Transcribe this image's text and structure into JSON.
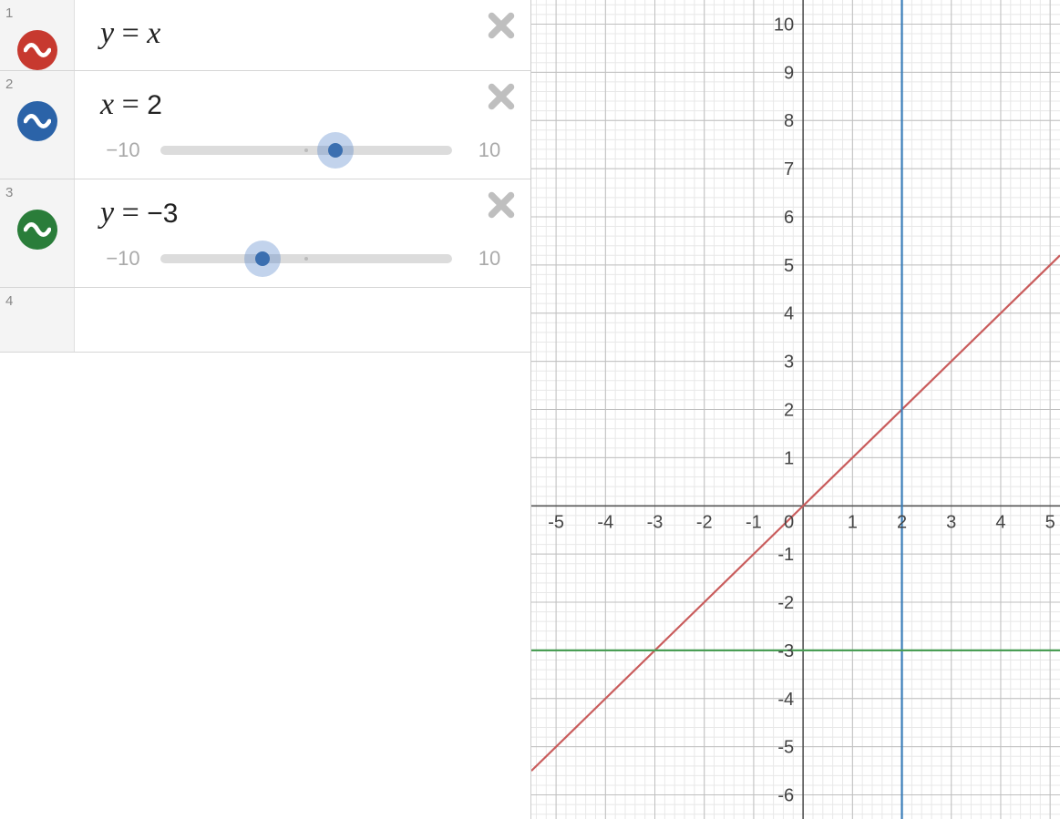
{
  "sidebar": {
    "rows": [
      {
        "index": "1",
        "badge_color": "#c7392f",
        "expr_lhs": "y",
        "expr_rhs": "x",
        "has_slider": false
      },
      {
        "index": "2",
        "badge_color": "#2b63a8",
        "expr_lhs": "x",
        "expr_rhs": "2",
        "has_slider": true,
        "slider": {
          "min": "−10",
          "max": "10",
          "min_val": -10,
          "max_val": 10,
          "value": 2,
          "tick_at": 0
        }
      },
      {
        "index": "3",
        "badge_color": "#2a7d3a",
        "expr_lhs": "y",
        "expr_rhs": "−3",
        "has_slider": true,
        "slider": {
          "min": "−10",
          "max": "10",
          "min_val": -10,
          "max_val": 10,
          "value": -3,
          "tick_at": 0
        }
      },
      {
        "index": "4",
        "empty": true
      }
    ],
    "close_icon_color": "#bfbfbf",
    "slider_thumb_color": "#3b6fb0",
    "slider_halo_color": "rgba(80,130,200,0.35)",
    "slider_track_color": "#dcdcdc"
  },
  "graph": {
    "x_min": -5.5,
    "x_max": 5.2,
    "y_min": -6.5,
    "y_max": 10.5,
    "minor_subdiv": 5,
    "grid_minor_color": "#e8e8e8",
    "grid_major_color": "#bfbfbf",
    "axis_color": "#555555",
    "axis_width": 1.6,
    "background_color": "#ffffff",
    "x_ticks": [
      -5,
      -4,
      -3,
      -2,
      -1,
      1,
      2,
      3,
      4,
      5
    ],
    "y_ticks": [
      -6,
      -5,
      -4,
      -3,
      -2,
      -1,
      1,
      2,
      3,
      4,
      5,
      6,
      7,
      8,
      9,
      10
    ],
    "origin_label": "0",
    "label_fontsize": 20,
    "label_color": "#444444",
    "lines": [
      {
        "type": "diagonal",
        "slope": 1,
        "intercept": 0,
        "color": "#c95c5c",
        "width": 2.2
      },
      {
        "type": "vertical",
        "x": 2,
        "color": "#3a7db8",
        "width": 2.2
      },
      {
        "type": "horizontal",
        "y": -3,
        "color": "#4a9e55",
        "width": 2.2
      }
    ]
  }
}
